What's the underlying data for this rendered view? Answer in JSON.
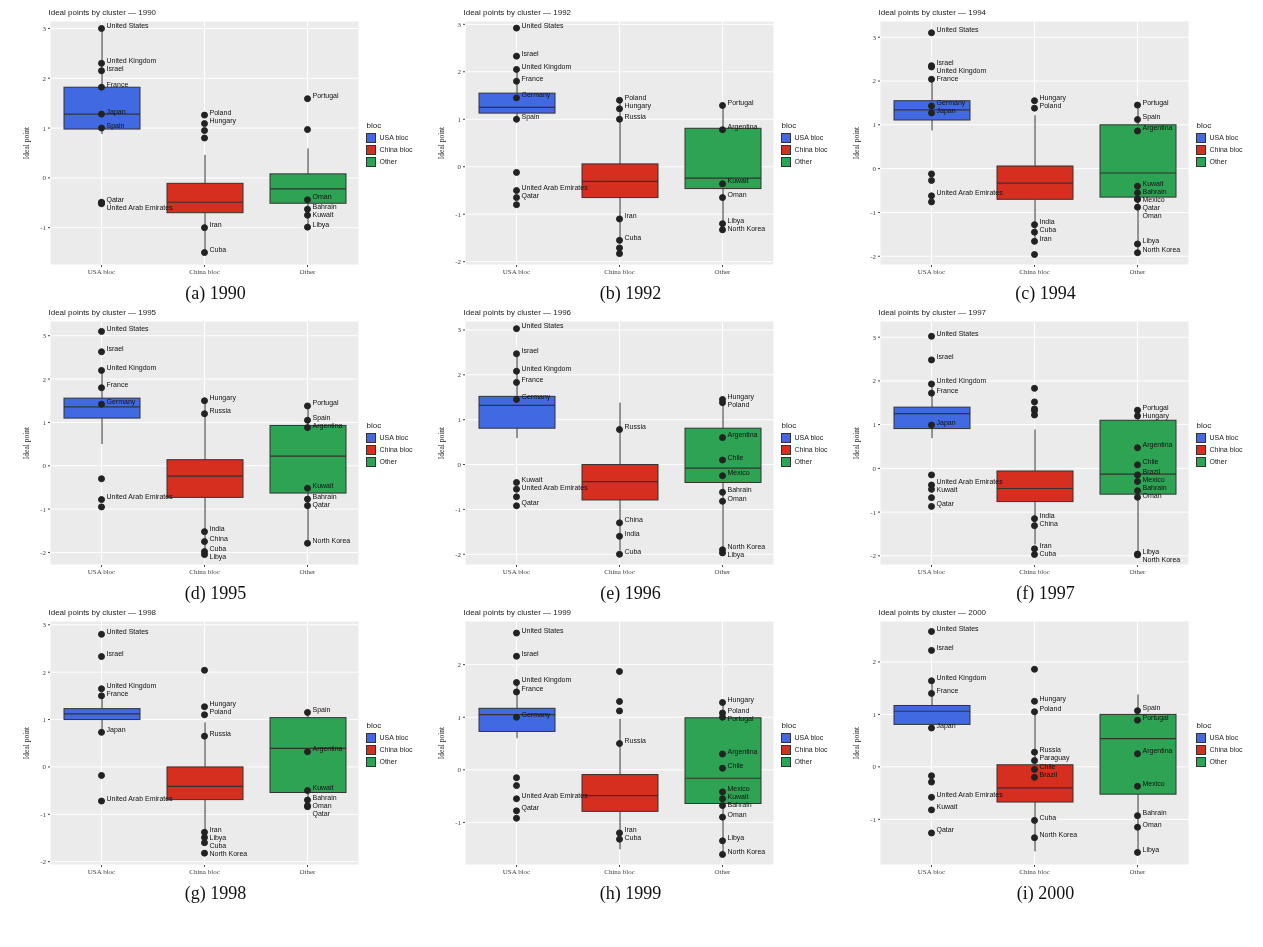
{
  "chart_data": [
    {
      "type": "box",
      "title": "Ideal points by cluster — 1990",
      "ylabel": "Ideal point",
      "legend_title": "bloc",
      "legend": "right",
      "grid": true,
      "categories": [
        "USA bloc",
        "China bloc",
        "Other"
      ],
      "ylim": [
        -1.75,
        3.15
      ],
      "yticks": [
        -1,
        0,
        1,
        2,
        3
      ],
      "series": [
        {
          "name": "USA bloc",
          "color": "#4169e1",
          "boxes": [
            {
              "low": 0.88,
              "q1": 0.98,
              "median": 1.28,
              "q3": 1.82,
              "high": 3.0
            },
            null,
            null
          ]
        },
        {
          "name": "China bloc",
          "color": "#d62f1f",
          "boxes": [
            null,
            {
              "low": -1.49,
              "q1": -0.7,
              "median": -0.49,
              "q3": -0.11,
              "high": 0.46
            },
            null
          ]
        },
        {
          "name": "Other",
          "color": "#2ea354",
          "boxes": [
            null,
            null,
            {
              "low": -1.03,
              "q1": -0.51,
              "median": -0.22,
              "q3": 0.08,
              "high": 0.59
            }
          ]
        },
        {
          "type": "scatter",
          "color": "#222222",
          "x": [
            "USA bloc",
            "USA bloc",
            "USA bloc",
            "USA bloc",
            "USA bloc",
            "USA bloc",
            "USA bloc",
            "USA bloc",
            "USA bloc",
            "China bloc",
            "China bloc",
            "China bloc",
            "China bloc",
            "China bloc",
            "China bloc",
            "Other",
            "Other",
            "Other",
            "Other",
            "Other",
            "Other"
          ],
          "values": [
            3.0,
            2.3,
            2.15,
            1.82,
            1.28,
            1.0,
            -0.49,
            -0.52,
            -0.5,
            1.26,
            1.09,
            -1.0,
            -1.5,
            0.95,
            0.8,
            1.59,
            -0.44,
            -0.63,
            -0.75,
            -0.99,
            0.97
          ],
          "value_labels": [
            "United States",
            "United Kingdom",
            "Israel",
            "France",
            "Japan",
            "Spain",
            "Qatar",
            "United Arab Emirates",
            null,
            "Poland",
            "Hungary",
            "Iran",
            "Cuba",
            null,
            null,
            "Portugal",
            "Oman",
            "Bahrain",
            "Kuwait",
            "Libya",
            null
          ]
        }
      ],
      "annotations": [
        "(a) 1990"
      ]
    },
    {
      "type": "box",
      "title": "Ideal points by cluster — 1992",
      "ylabel": "Ideal point",
      "legend_title": "bloc",
      "legend": "right",
      "grid": true,
      "categories": [
        "USA bloc",
        "China bloc",
        "Other"
      ],
      "ylim": [
        -2.07,
        3.07
      ],
      "yticks": [
        -2,
        -1,
        0,
        1,
        2,
        3
      ],
      "series": [
        {
          "name": "USA bloc",
          "color": "#4169e1",
          "boxes": [
            {
              "low": 0.96,
              "q1": 1.13,
              "median": 1.25,
              "q3": 1.55,
              "high": 2.0
            },
            null,
            null
          ]
        },
        {
          "name": "China bloc",
          "color": "#d62f1f",
          "boxes": [
            null,
            {
              "low": -1.63,
              "q1": -0.65,
              "median": -0.31,
              "q3": 0.06,
              "high": 1.45
            },
            null
          ]
        },
        {
          "name": "Other",
          "color": "#2ea354",
          "boxes": [
            null,
            null,
            {
              "low": -1.33,
              "q1": -0.46,
              "median": -0.24,
              "q3": 0.81,
              "high": 1.29
            }
          ]
        },
        {
          "type": "scatter",
          "color": "#222222",
          "x": [
            "USA bloc",
            "USA bloc",
            "USA bloc",
            "USA bloc",
            "USA bloc",
            "USA bloc",
            "USA bloc",
            "USA bloc",
            "USA bloc",
            "USA bloc",
            "China bloc",
            "China bloc",
            "China bloc",
            "China bloc",
            "China bloc",
            "China bloc",
            "China bloc",
            "Other",
            "Other",
            "Other",
            "Other",
            "Other",
            "Other"
          ],
          "values": [
            2.92,
            2.33,
            2.05,
            1.8,
            1.45,
            1.0,
            -0.5,
            -0.65,
            -0.12,
            -0.8,
            1.4,
            1.22,
            1.0,
            -1.1,
            -1.55,
            -1.71,
            -1.83,
            1.29,
            0.78,
            -0.36,
            -0.65,
            -1.2,
            -1.33
          ],
          "value_labels": [
            "United States",
            "Israel",
            "United Kingdom",
            "France",
            "Germany",
            "Spain",
            "United Arab Emirates",
            "Qatar",
            null,
            null,
            "Poland",
            "Hungary",
            "Russia",
            "Iran",
            "Cuba",
            null,
            null,
            "Portugal",
            "Argentina",
            "Kuwait",
            "Oman",
            "Libya",
            "North Korea"
          ]
        }
      ],
      "annotations": [
        "(b) 1992"
      ]
    },
    {
      "type": "box",
      "title": "Ideal points by cluster — 1994",
      "ylabel": "Ideal point",
      "legend_title": "bloc",
      "legend": "right",
      "grid": true,
      "categories": [
        "USA bloc",
        "China bloc",
        "Other"
      ],
      "ylim": [
        -2.2,
        3.37
      ],
      "yticks": [
        -2,
        -1,
        0,
        1,
        2,
        3
      ],
      "series": [
        {
          "name": "USA bloc",
          "color": "#4169e1",
          "boxes": [
            {
              "low": 0.87,
              "q1": 1.11,
              "median": 1.34,
              "q3": 1.55,
              "high": 2.04
            },
            null,
            null
          ]
        },
        {
          "name": "China bloc",
          "color": "#d62f1f",
          "boxes": [
            null,
            {
              "low": -1.72,
              "q1": -0.7,
              "median": -0.33,
              "q3": 0.06,
              "high": 1.22
            },
            null
          ]
        },
        {
          "name": "Other",
          "color": "#2ea354",
          "boxes": [
            null,
            null,
            {
              "low": -1.92,
              "q1": -0.65,
              "median": -0.1,
              "q3": 1.0,
              "high": 1.46
            }
          ]
        },
        {
          "type": "scatter",
          "color": "#222222",
          "x": [
            "USA bloc",
            "USA bloc",
            "USA bloc",
            "USA bloc",
            "USA bloc",
            "USA bloc",
            "USA bloc",
            "USA bloc",
            "USA bloc",
            "USA bloc",
            "China bloc",
            "China bloc",
            "China bloc",
            "China bloc",
            "China bloc",
            "China bloc",
            "Other",
            "Other",
            "Other",
            "Other",
            "Other",
            "Other",
            "Other",
            "Other",
            "Other",
            "Other"
          ],
          "values": [
            3.1,
            2.35,
            2.32,
            2.04,
            1.43,
            1.27,
            -0.62,
            -0.12,
            -0.27,
            -0.76,
            1.55,
            1.38,
            -1.28,
            -1.45,
            -1.66,
            -1.96,
            1.45,
            1.12,
            0.86,
            -0.4,
            -0.55,
            -0.7,
            -0.7,
            -0.88,
            -1.72,
            -1.92
          ],
          "value_labels": [
            "United States",
            "Israel",
            "United Kingdom",
            "France",
            "Germany",
            "Japan",
            "United Arab Emirates",
            null,
            null,
            null,
            "Hungary",
            "Poland",
            "India",
            "Cuba",
            "Iran",
            null,
            "Portugal",
            "Spain",
            "Argentina",
            "Kuwait",
            "Bahrain",
            "Mexico",
            "Qatar",
            "Oman",
            "Libya",
            "North Korea"
          ]
        }
      ],
      "annotations": [
        "(c) 1994"
      ]
    },
    {
      "type": "box",
      "title": "Ideal points by cluster — 1995",
      "ylabel": "Ideal point",
      "legend_title": "bloc",
      "legend": "right",
      "grid": true,
      "categories": [
        "USA bloc",
        "China bloc",
        "Other"
      ],
      "ylim": [
        -2.29,
        3.34
      ],
      "yticks": [
        -2,
        -1,
        0,
        1,
        2,
        3
      ],
      "series": [
        {
          "name": "USA bloc",
          "color": "#4169e1",
          "boxes": [
            {
              "low": 0.5,
              "q1": 1.1,
              "median": 1.36,
              "q3": 1.56,
              "high": 2.2
            },
            null,
            null
          ]
        },
        {
          "name": "China bloc",
          "color": "#d62f1f",
          "boxes": [
            null,
            {
              "low": -1.96,
              "q1": -0.73,
              "median": -0.24,
              "q3": 0.14,
              "high": 1.44
            },
            null
          ]
        },
        {
          "name": "Other",
          "color": "#2ea354",
          "boxes": [
            null,
            null,
            {
              "low": -1.79,
              "q1": -0.63,
              "median": 0.22,
              "q3": 0.93,
              "high": 1.4
            }
          ]
        },
        {
          "type": "scatter",
          "color": "#222222",
          "x": [
            "USA bloc",
            "USA bloc",
            "USA bloc",
            "USA bloc",
            "USA bloc",
            "USA bloc",
            "USA bloc",
            "USA bloc",
            "China bloc",
            "China bloc",
            "China bloc",
            "China bloc",
            "China bloc",
            "China bloc",
            "Other",
            "Other",
            "Other",
            "Other",
            "Other",
            "Other",
            "Other"
          ],
          "values": [
            3.1,
            2.63,
            2.2,
            1.8,
            1.42,
            -0.78,
            -0.3,
            -0.95,
            1.5,
            1.2,
            -1.52,
            -1.75,
            -1.98,
            -2.05,
            1.38,
            1.05,
            0.88,
            -0.52,
            -0.77,
            -0.92,
            -1.79
          ],
          "value_labels": [
            "United States",
            "Israel",
            "United Kingdom",
            "France",
            "Germany",
            "United Arab Emirates",
            null,
            null,
            "Hungary",
            "Russia",
            "India",
            "China",
            "Cuba",
            "Libya",
            "Portugal",
            "Spain",
            "Argentina",
            "Kuwait",
            "Bahrain",
            "Qatar",
            "North Korea"
          ]
        }
      ],
      "annotations": [
        "(d) 1995"
      ]
    },
    {
      "type": "box",
      "title": "Ideal points by cluster — 1996",
      "ylabel": "Ideal point",
      "legend_title": "bloc",
      "legend": "right",
      "grid": true,
      "categories": [
        "USA bloc",
        "China bloc",
        "Other"
      ],
      "ylim": [
        -2.24,
        3.2
      ],
      "yticks": [
        -2,
        -1,
        0,
        1,
        2,
        3
      ],
      "series": [
        {
          "name": "USA bloc",
          "color": "#4169e1",
          "boxes": [
            {
              "low": 0.59,
              "q1": 0.81,
              "median": 1.32,
              "q3": 1.52,
              "high": 2.47
            },
            null,
            null
          ]
        },
        {
          "name": "China bloc",
          "color": "#d62f1f",
          "boxes": [
            null,
            {
              "low": -1.92,
              "q1": -0.79,
              "median": -0.38,
              "q3": 0.0,
              "high": 1.38
            },
            null
          ]
        },
        {
          "name": "Other",
          "color": "#2ea354",
          "boxes": [
            null,
            null,
            {
              "low": -1.92,
              "q1": -0.4,
              "median": -0.08,
              "q3": 0.81,
              "high": 1.41
            }
          ]
        },
        {
          "type": "scatter",
          "color": "#222222",
          "x": [
            "USA bloc",
            "USA bloc",
            "USA bloc",
            "USA bloc",
            "USA bloc",
            "USA bloc",
            "USA bloc",
            "USA bloc",
            "USA bloc",
            "China bloc",
            "China bloc",
            "China bloc",
            "China bloc",
            "Other",
            "Other",
            "Other",
            "Other",
            "Other",
            "Other",
            "Other",
            "Other",
            "Other"
          ],
          "values": [
            3.03,
            2.47,
            2.08,
            1.83,
            1.45,
            -0.4,
            -0.55,
            -0.92,
            -0.72,
            0.78,
            -1.3,
            -1.6,
            -2.0,
            1.45,
            1.38,
            0.6,
            0.1,
            -0.25,
            -0.62,
            -0.82,
            -1.9,
            -1.97
          ],
          "value_labels": [
            "United States",
            "Israel",
            "United Kingdom",
            "France",
            "Germany",
            "Kuwait",
            "United Arab Emirates",
            "Qatar",
            null,
            "Russia",
            "China",
            "India",
            "Cuba",
            "Hungary",
            "Poland",
            "Argentina",
            "Chile",
            "Mexico",
            "Bahrain",
            "Oman",
            "North Korea",
            "Libya"
          ]
        }
      ],
      "annotations": [
        "(e) 1996"
      ]
    },
    {
      "type": "box",
      "title": "Ideal points by cluster — 1997",
      "ylabel": "Ideal point",
      "legend_title": "bloc",
      "legend": "right",
      "grid": true,
      "categories": [
        "USA bloc",
        "China bloc",
        "Other"
      ],
      "ylim": [
        -2.21,
        3.37
      ],
      "yticks": [
        -2,
        -1,
        0,
        1,
        2,
        3
      ],
      "series": [
        {
          "name": "USA bloc",
          "color": "#4169e1",
          "boxes": [
            {
              "low": 0.69,
              "q1": 0.91,
              "median": 1.25,
              "q3": 1.4,
              "high": 1.93
            },
            null,
            null
          ]
        },
        {
          "name": "China bloc",
          "color": "#d62f1f",
          "boxes": [
            null,
            {
              "low": -1.74,
              "q1": -0.76,
              "median": -0.46,
              "q3": -0.06,
              "high": 0.89
            },
            null
          ]
        },
        {
          "name": "Other",
          "color": "#2ea354",
          "boxes": [
            null,
            null,
            {
              "low": -1.96,
              "q1": -0.59,
              "median": -0.13,
              "q3": 1.1,
              "high": 1.34
            }
          ]
        },
        {
          "type": "scatter",
          "color": "#222222",
          "x": [
            "USA bloc",
            "USA bloc",
            "USA bloc",
            "USA bloc",
            "USA bloc",
            "USA bloc",
            "USA bloc",
            "USA bloc",
            "USA bloc",
            "USA bloc",
            "China bloc",
            "China bloc",
            "China bloc",
            "China bloc",
            "China bloc",
            "China bloc",
            "China bloc",
            "China bloc",
            "China bloc",
            "Other",
            "Other",
            "Other",
            "Other",
            "Other",
            "Other",
            "Other",
            "Other",
            "Other",
            "Other"
          ],
          "values": [
            3.02,
            2.48,
            1.93,
            1.72,
            0.99,
            -0.48,
            -0.38,
            -0.87,
            -0.15,
            -0.67,
            -1.15,
            -1.31,
            -1.84,
            -1.97,
            1.83,
            1.52,
            1.36,
            1.32,
            1.22,
            1.33,
            1.2,
            0.47,
            0.08,
            -0.15,
            -0.3,
            -0.51,
            -0.66,
            -1.96,
            -1.98
          ],
          "value_labels": [
            "United States",
            "Israel",
            "United Kingdom",
            "France",
            "Japan",
            "Kuwait",
            "United Arab Emirates",
            "Qatar",
            null,
            null,
            "India",
            "China",
            "Iran",
            "Cuba",
            null,
            null,
            null,
            null,
            null,
            "Portugal",
            "Hungary",
            "Argentina",
            "Chile",
            "Brazil",
            "Mexico",
            "Bahrain",
            "Oman",
            "Libya",
            "North Korea"
          ]
        }
      ],
      "annotations": [
        "(f) 1997"
      ]
    },
    {
      "type": "box",
      "title": "Ideal points by cluster — 1998",
      "ylabel": "Ideal point",
      "legend_title": "bloc",
      "legend": "right",
      "grid": true,
      "categories": [
        "USA bloc",
        "China bloc",
        "Other"
      ],
      "ylim": [
        -2.07,
        3.08
      ],
      "yticks": [
        -2,
        -1,
        0,
        1,
        2,
        3
      ],
      "series": [
        {
          "name": "USA bloc",
          "color": "#4169e1",
          "boxes": [
            {
              "low": 0.73,
              "q1": 1.0,
              "median": 1.12,
              "q3": 1.23,
              "high": 1.5
            },
            null,
            null
          ]
        },
        {
          "name": "China bloc",
          "color": "#d62f1f",
          "boxes": [
            null,
            {
              "low": -1.49,
              "q1": -0.69,
              "median": -0.41,
              "q3": 0.0,
              "high": 0.94
            },
            null
          ]
        },
        {
          "name": "Other",
          "color": "#2ea354",
          "boxes": [
            null,
            null,
            {
              "low": -0.84,
              "q1": -0.54,
              "median": 0.39,
              "q3": 1.04,
              "high": 1.15
            }
          ]
        },
        {
          "type": "scatter",
          "color": "#222222",
          "x": [
            "USA bloc",
            "USA bloc",
            "USA bloc",
            "USA bloc",
            "USA bloc",
            "USA bloc",
            "USA bloc",
            "China bloc",
            "China bloc",
            "China bloc",
            "China bloc",
            "China bloc",
            "China bloc",
            "China bloc",
            "China bloc",
            "Other",
            "Other",
            "Other",
            "Other",
            "Other",
            "Other"
          ],
          "values": [
            2.8,
            2.33,
            1.65,
            1.5,
            0.73,
            -0.72,
            -0.18,
            1.27,
            1.1,
            0.65,
            -1.38,
            -1.49,
            -1.6,
            -1.82,
            2.04,
            1.15,
            0.32,
            -0.5,
            -0.7,
            -0.84,
            -0.82
          ],
          "value_labels": [
            "United States",
            "Israel",
            "United Kingdom",
            "France",
            "Japan",
            "United Arab Emirates",
            null,
            "Hungary",
            "Poland",
            "Russia",
            "Iran",
            "Libya",
            "Cuba",
            "North Korea",
            null,
            "Spain",
            "Argentina",
            "Kuwait",
            "Bahrain",
            "Qatar",
            "Oman"
          ]
        }
      ],
      "annotations": [
        "(g) 1998"
      ]
    },
    {
      "type": "box",
      "title": "Ideal points by cluster — 1999",
      "ylabel": "Ideal point",
      "legend_title": "bloc",
      "legend": "right",
      "grid": true,
      "categories": [
        "USA bloc",
        "China bloc",
        "Other"
      ],
      "ylim": [
        -1.81,
        2.83
      ],
      "yticks": [
        -1,
        0,
        1,
        2
      ],
      "series": [
        {
          "name": "USA bloc",
          "color": "#4169e1",
          "boxes": [
            {
              "low": 0.6,
              "q1": 0.73,
              "median": 1.05,
              "q3": 1.17,
              "high": 1.66
            },
            null,
            null
          ]
        },
        {
          "name": "China bloc",
          "color": "#d62f1f",
          "boxes": [
            null,
            {
              "low": -1.51,
              "q1": -0.79,
              "median": -0.49,
              "q3": -0.09,
              "high": 0.97
            },
            null
          ]
        },
        {
          "name": "Other",
          "color": "#2ea354",
          "boxes": [
            null,
            null,
            {
              "low": -1.61,
              "q1": -0.64,
              "median": -0.16,
              "q3": 0.99,
              "high": 1.28
            }
          ]
        },
        {
          "type": "scatter",
          "color": "#222222",
          "x": [
            "USA bloc",
            "USA bloc",
            "USA bloc",
            "USA bloc",
            "USA bloc",
            "USA bloc",
            "USA bloc",
            "USA bloc",
            "USA bloc",
            "USA bloc",
            "China bloc",
            "China bloc",
            "China bloc",
            "China bloc",
            "China bloc",
            "China bloc",
            "Other",
            "Other",
            "Other",
            "Other",
            "Other",
            "Other",
            "Other",
            "Other",
            "Other",
            "Other",
            "Other"
          ],
          "values": [
            2.6,
            2.16,
            1.66,
            1.48,
            1.0,
            -0.55,
            -0.78,
            -0.15,
            -0.3,
            -0.92,
            0.5,
            -1.2,
            -1.32,
            1.87,
            1.3,
            1.12,
            1.28,
            1.08,
            1.0,
            0.3,
            0.03,
            -0.42,
            -0.55,
            -0.68,
            -0.9,
            -1.35,
            -1.61
          ],
          "value_labels": [
            "United States",
            "Israel",
            "United Kingdom",
            "France",
            "Germany",
            "United Arab Emirates",
            "Qatar",
            null,
            null,
            null,
            "Russia",
            "Iran",
            "Cuba",
            null,
            null,
            null,
            "Hungary",
            "Poland",
            "Portugal",
            "Argentina",
            "Chile",
            "Mexico",
            "Kuwait",
            "Bahrain",
            "Oman",
            "Libya",
            "North Korea"
          ]
        }
      ],
      "annotations": [
        "(h) 1999"
      ]
    },
    {
      "type": "box",
      "title": "Ideal points by cluster — 2000",
      "ylabel": "Ideal point",
      "legend_title": "bloc",
      "legend": "right",
      "grid": true,
      "categories": [
        "USA bloc",
        "China bloc",
        "Other"
      ],
      "ylim": [
        -1.87,
        2.78
      ],
      "yticks": [
        -1,
        0,
        1,
        2
      ],
      "series": [
        {
          "name": "USA bloc",
          "color": "#4169e1",
          "boxes": [
            {
              "low": 0.74,
              "q1": 0.81,
              "median": 1.06,
              "q3": 1.17,
              "high": 1.64
            },
            null,
            null
          ]
        },
        {
          "name": "China bloc",
          "color": "#d62f1f",
          "boxes": [
            null,
            {
              "low": -1.61,
              "q1": -0.67,
              "median": -0.4,
              "q3": 0.04,
              "high": 1.08
            },
            null
          ]
        },
        {
          "name": "Other",
          "color": "#2ea354",
          "boxes": [
            null,
            null,
            {
              "low": -1.63,
              "q1": -0.52,
              "median": 0.54,
              "q3": 1.0,
              "high": 1.38
            }
          ]
        },
        {
          "type": "scatter",
          "color": "#222222",
          "x": [
            "USA bloc",
            "USA bloc",
            "USA bloc",
            "USA bloc",
            "USA bloc",
            "USA bloc",
            "USA bloc",
            "USA bloc",
            "USA bloc",
            "USA bloc",
            "China bloc",
            "China bloc",
            "China bloc",
            "China bloc",
            "China bloc",
            "China bloc",
            "China bloc",
            "China bloc",
            "China bloc",
            "Other",
            "Other",
            "Other",
            "Other",
            "Other",
            "Other",
            "Other"
          ],
          "values": [
            2.58,
            2.22,
            1.64,
            1.4,
            0.74,
            -0.58,
            -0.82,
            -1.26,
            -0.17,
            -0.29,
            1.25,
            1.05,
            0.28,
            0.12,
            -0.05,
            -0.2,
            -1.02,
            -1.35,
            1.86,
            1.07,
            0.89,
            0.25,
            -0.37,
            -0.93,
            -1.15,
            -1.63
          ],
          "value_labels": [
            "United States",
            "Israel",
            "United Kingdom",
            "France",
            "Japan",
            "United Arab Emirates",
            "Kuwait",
            "Qatar",
            null,
            null,
            "Hungary",
            "Poland",
            "Russia",
            "Paraguay",
            "Chile",
            "Brazil",
            "Cuba",
            "North Korea",
            null,
            "Spain",
            "Portugal",
            "Argentina",
            "Mexico",
            "Bahrain",
            "Oman",
            "Libya"
          ]
        }
      ],
      "annotations": [
        "(i) 2000"
      ]
    }
  ]
}
